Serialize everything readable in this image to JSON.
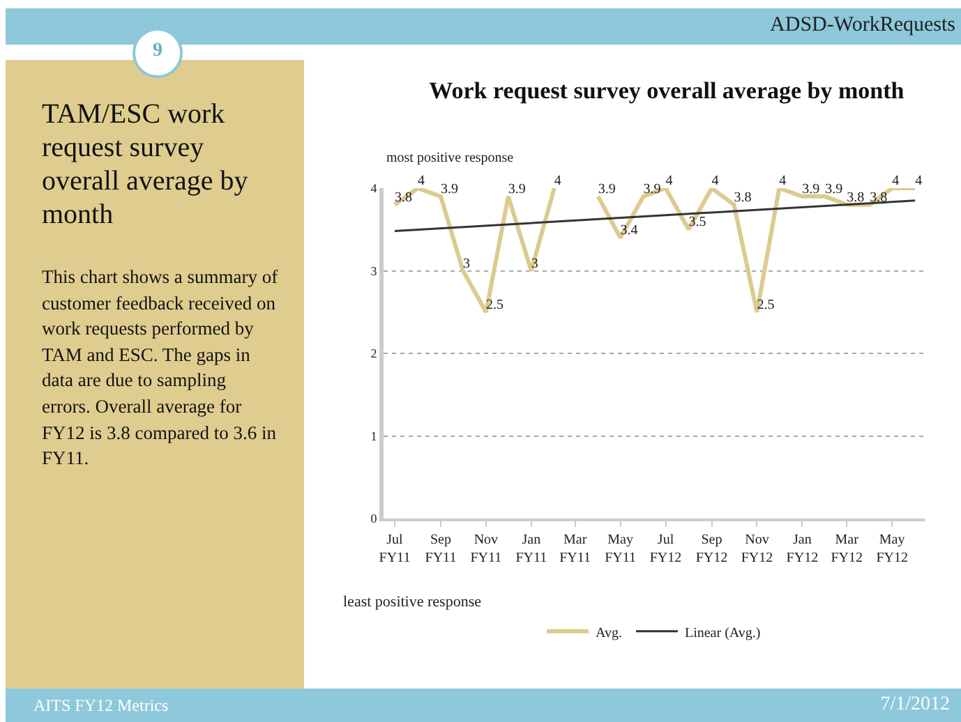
{
  "chart_data": {
    "type": "line",
    "title": "Work request survey overall average by month",
    "x": [
      "2010-07",
      "2010-08",
      "2010-09",
      "2010-10",
      "2010-11",
      "2010-12",
      "2011-01",
      "2011-02",
      "2011-03",
      "2011-04",
      "2011-05",
      "2011-06",
      "2011-07",
      "2011-08",
      "2011-09",
      "2011-10",
      "2011-11",
      "2011-12",
      "2012-01",
      "2012-02",
      "2012-03",
      "2012-04",
      "2012-05",
      "2012-06"
    ],
    "series": [
      {
        "name": "Avg.",
        "color": "#dccb8f",
        "values": [
          3.8,
          4,
          3.9,
          3,
          2.5,
          3.9,
          3,
          4,
          null,
          3.9,
          3.4,
          3.9,
          4,
          3.5,
          4,
          3.8,
          2.5,
          4,
          3.9,
          3.9,
          3.8,
          3.8,
          4,
          4
        ],
        "value_labels": [
          "3.8",
          "4",
          "3.9",
          "3",
          "2.5",
          "3.9",
          "3",
          "4",
          null,
          "3.9",
          "3.4",
          "3.9",
          "4",
          "3.5",
          "4",
          "3.8",
          "2.5",
          "4",
          "3.9",
          "3.9",
          "3.8",
          "3.8",
          "4",
          "4"
        ]
      },
      {
        "name": "Linear (Avg.)",
        "color": "#333333",
        "type": "line",
        "x": [
          "2010-07",
          "2012-06"
        ],
        "values": [
          3.48,
          3.85
        ]
      }
    ],
    "xlim": [
      "2010-06-16",
      "2012-06-14"
    ],
    "xticks": [
      {
        "value": "2010-07",
        "label": "Jul FY11"
      },
      {
        "value": "2010-09",
        "label": "Sep FY11"
      },
      {
        "value": "2010-11",
        "label": "Nov FY11"
      },
      {
        "value": "2011-01",
        "label": "Jan FY11"
      },
      {
        "value": "2011-03",
        "label": "Mar FY11"
      },
      {
        "value": "2011-05",
        "label": "May FY11"
      },
      {
        "value": "2011-07",
        "label": "Jul FY12"
      },
      {
        "value": "2011-09",
        "label": "Sep FY12"
      },
      {
        "value": "2011-11",
        "label": "Nov FY12"
      },
      {
        "value": "2012-01",
        "label": "Jan FY12"
      },
      {
        "value": "2012-03",
        "label": "Mar FY12"
      },
      {
        "value": "2012-05",
        "label": "May FY12"
      }
    ],
    "ylim": [
      0,
      4
    ],
    "yticks": [
      0,
      1,
      2,
      3,
      4
    ],
    "grid": "y",
    "legend": "bottom",
    "marker": "none",
    "line_style": "solid",
    "annotations": [
      "most positive response",
      "least positive response",
      "ADSD-WorkRequests",
      "9",
      "TAM/ESC work request survey overall average by month",
      "This chart shows a summary of customer feedback received on work requests performed by TAM and ESC.  The gaps in data are due to sampling errors.  Overall average for FY12 is 3.8 compared to 3.6 in FY11.",
      "AITS FY12 Metrics",
      "7/1/2012"
    ]
  }
}
